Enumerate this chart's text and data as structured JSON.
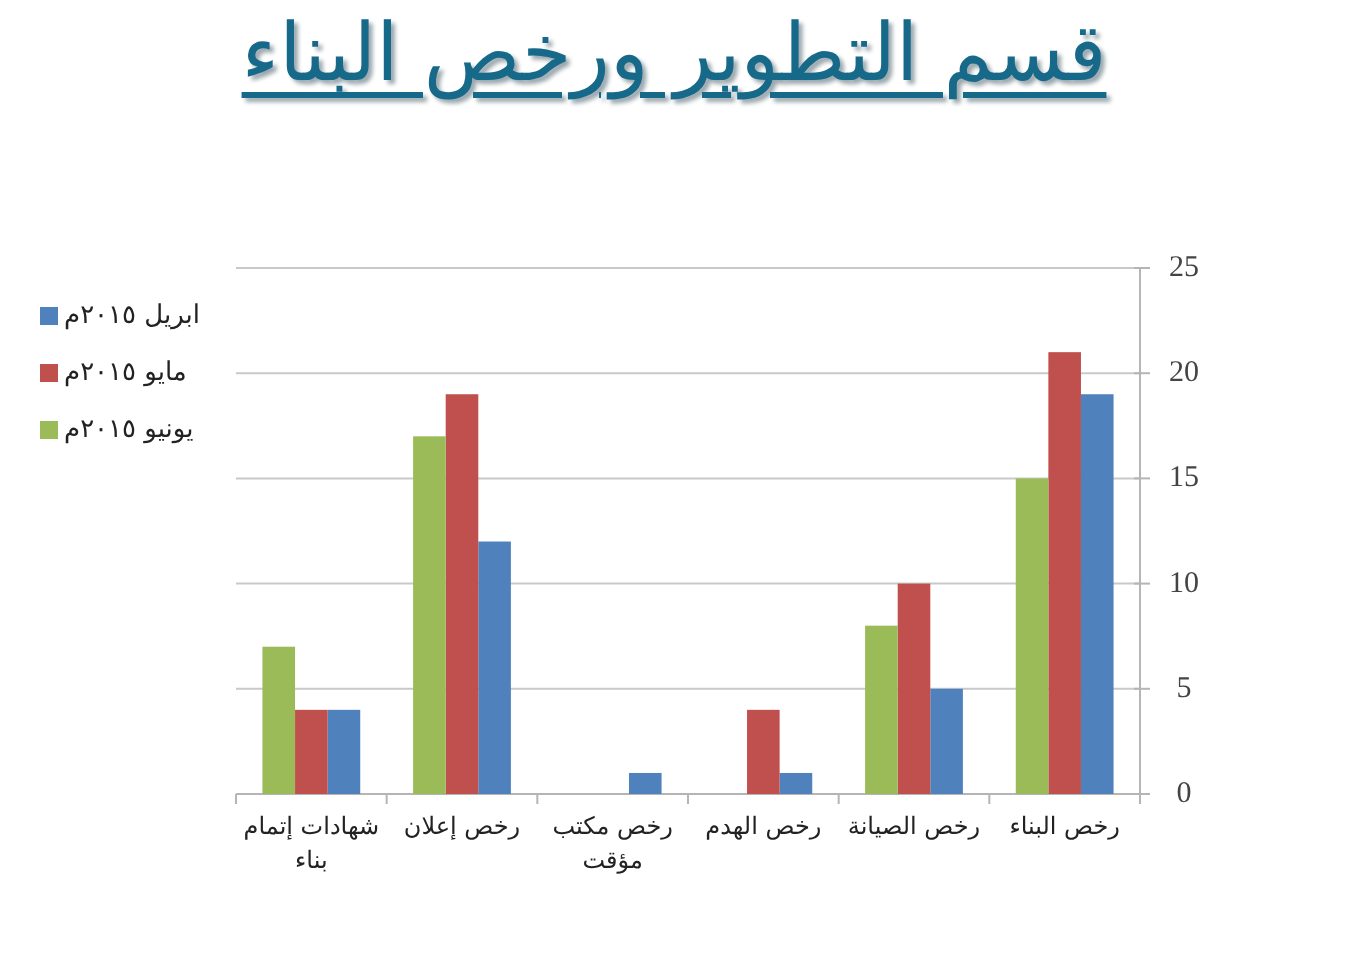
{
  "chart_data": {
    "type": "bar",
    "title": "قسم التطوير ورخص البناء",
    "categories": [
      "شهادات إتمام بناء",
      "رخص إعلان",
      "رخص مكتب مؤقت",
      "رخص الهدم",
      "رخص الصيانة",
      "رخص البناء"
    ],
    "series": [
      {
        "name": "ابريل ٢٠١٥م",
        "color": "#4f81bd",
        "values": [
          4,
          12,
          1,
          1,
          5,
          19
        ]
      },
      {
        "name": "مايو ٢٠١٥م",
        "color": "#c0504d",
        "values": [
          4,
          19,
          0,
          4,
          10,
          21
        ]
      },
      {
        "name": "يونيو ٢٠١٥م",
        "color": "#9bbb59",
        "values": [
          7,
          17,
          0,
          0,
          8,
          15
        ]
      }
    ],
    "ylim": [
      0,
      25
    ],
    "yticks": [
      0,
      5,
      10,
      15,
      20,
      25
    ],
    "grid": "y",
    "legend": "top left"
  }
}
